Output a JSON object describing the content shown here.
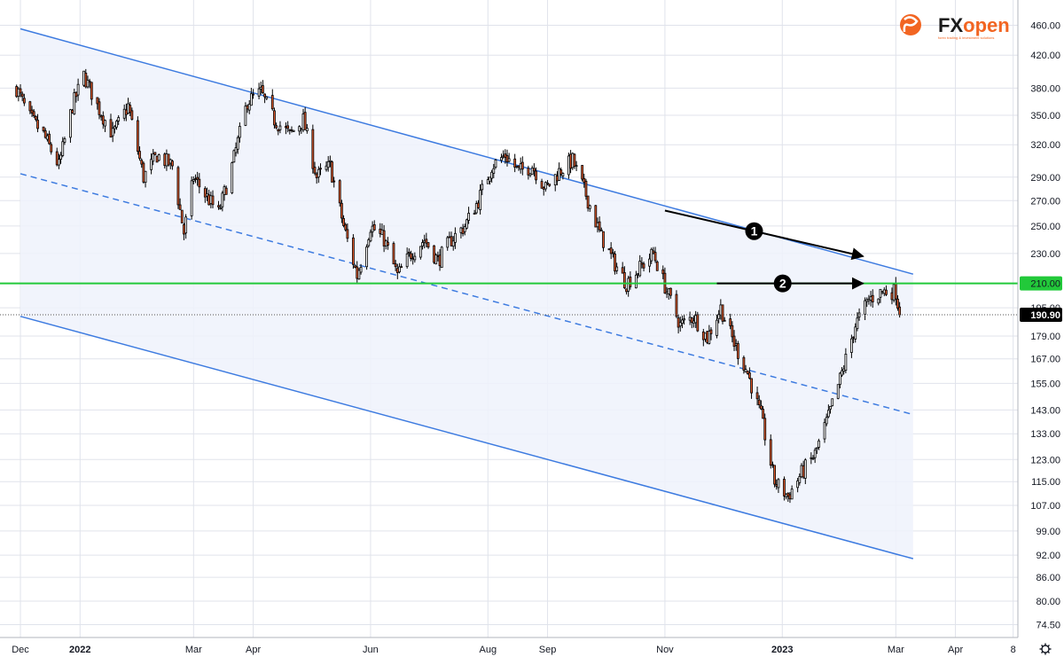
{
  "chart_data": {
    "type": "candlestick",
    "price_axis": {
      "scale": "log",
      "ticks": [
        "460.00",
        "420.00",
        "380.00",
        "350.00",
        "320.00",
        "290.00",
        "270.00",
        "250.00",
        "230.00",
        "210.00",
        "195.00",
        "179.00",
        "167.00",
        "155.00",
        "143.00",
        "133.00",
        "123.00",
        "115.00",
        "107.00",
        "99.00",
        "92.00",
        "86.00",
        "80.00",
        "74.50"
      ],
      "range": [
        73,
        490
      ]
    },
    "time_axis": {
      "ticks": [
        {
          "label": "Dec",
          "date": "2021-12-01",
          "bold": false
        },
        {
          "label": "2022",
          "date": "2022-01-01",
          "bold": true
        },
        {
          "label": "Mar",
          "date": "2022-03-01",
          "bold": false
        },
        {
          "label": "Apr",
          "date": "2022-04-01",
          "bold": false
        },
        {
          "label": "Jun",
          "date": "2022-06-01",
          "bold": false
        },
        {
          "label": "Aug",
          "date": "2022-08-01",
          "bold": false
        },
        {
          "label": "Sep",
          "date": "2022-09-01",
          "bold": false
        },
        {
          "label": "Nov",
          "date": "2022-11-01",
          "bold": false
        },
        {
          "label": "2023",
          "date": "2023-01-01",
          "bold": true
        },
        {
          "label": "Mar",
          "date": "2023-03-01",
          "bold": false
        },
        {
          "label": "Apr",
          "date": "2023-04-01",
          "bold": false
        },
        {
          "label": "8",
          "date": "2023-05-01",
          "bold": false
        }
      ]
    },
    "close_path": [
      [
        "2021-11-29",
        380
      ],
      [
        "2021-12-05",
        350
      ],
      [
        "2021-12-13",
        330
      ],
      [
        "2021-12-21",
        300
      ],
      [
        "2021-12-28",
        360
      ],
      [
        "2022-01-03",
        395
      ],
      [
        "2022-01-10",
        360
      ],
      [
        "2022-01-18",
        330
      ],
      [
        "2022-01-26",
        360
      ],
      [
        "2022-02-03",
        290
      ],
      [
        "2022-02-10",
        310
      ],
      [
        "2022-02-18",
        300
      ],
      [
        "2022-02-24",
        245
      ],
      [
        "2022-03-01",
        290
      ],
      [
        "2022-03-07",
        275
      ],
      [
        "2022-03-14",
        260
      ],
      [
        "2022-03-21",
        300
      ],
      [
        "2022-03-29",
        365
      ],
      [
        "2022-04-05",
        375
      ],
      [
        "2022-04-12",
        345
      ],
      [
        "2022-04-20",
        330
      ],
      [
        "2022-04-27",
        345
      ],
      [
        "2022-05-04",
        290
      ],
      [
        "2022-05-11",
        300
      ],
      [
        "2022-05-18",
        250
      ],
      [
        "2022-05-25",
        215
      ],
      [
        "2022-06-01",
        250
      ],
      [
        "2022-06-08",
        240
      ],
      [
        "2022-06-15",
        215
      ],
      [
        "2022-06-22",
        230
      ],
      [
        "2022-06-29",
        240
      ],
      [
        "2022-07-06",
        225
      ],
      [
        "2022-07-13",
        240
      ],
      [
        "2022-07-20",
        250
      ],
      [
        "2022-07-27",
        270
      ],
      [
        "2022-08-03",
        300
      ],
      [
        "2022-08-10",
        310
      ],
      [
        "2022-08-17",
        295
      ],
      [
        "2022-08-24",
        300
      ],
      [
        "2022-08-31",
        280
      ],
      [
        "2022-09-07",
        295
      ],
      [
        "2022-09-14",
        305
      ],
      [
        "2022-09-21",
        275
      ],
      [
        "2022-09-28",
        245
      ],
      [
        "2022-10-05",
        225
      ],
      [
        "2022-10-12",
        210
      ],
      [
        "2022-10-19",
        220
      ],
      [
        "2022-10-26",
        230
      ],
      [
        "2022-11-02",
        205
      ],
      [
        "2022-11-09",
        185
      ],
      [
        "2022-11-16",
        190
      ],
      [
        "2022-11-23",
        178
      ],
      [
        "2022-11-30",
        195
      ],
      [
        "2022-12-07",
        175
      ],
      [
        "2022-12-14",
        160
      ],
      [
        "2022-12-21",
        140
      ],
      [
        "2022-12-28",
        115
      ],
      [
        "2023-01-04",
        110
      ],
      [
        "2023-01-11",
        118
      ],
      [
        "2023-01-18",
        125
      ],
      [
        "2023-01-25",
        140
      ],
      [
        "2023-02-01",
        160
      ],
      [
        "2023-02-08",
        185
      ],
      [
        "2023-02-15",
        200
      ],
      [
        "2023-02-22",
        205
      ],
      [
        "2023-03-01",
        205
      ],
      [
        "2023-03-03",
        190.9
      ]
    ],
    "current_price": "190.90",
    "horizontal_level": {
      "price": 210,
      "label": "210.00"
    },
    "channel": {
      "upper": [
        [
          "2021-12-01",
          455
        ],
        [
          "2023-03-10",
          216
        ]
      ],
      "mid": [
        [
          "2021-12-01",
          293
        ],
        [
          "2023-03-10",
          141
        ]
      ],
      "lower": [
        [
          "2021-12-01",
          190
        ],
        [
          "2023-03-10",
          91
        ]
      ]
    },
    "annotations": [
      {
        "label": "1",
        "from": [
          "2022-11-01",
          262
        ],
        "to": [
          "2023-02-12",
          228
        ]
      },
      {
        "label": "2",
        "from": [
          "2022-11-28",
          210
        ],
        "to": [
          "2023-02-12",
          210
        ]
      }
    ],
    "logo": {
      "text": "FXopen",
      "subtitle": "forex trading & investment solutions"
    },
    "colors": {
      "up": "#ffffff",
      "down": "#e25a2c",
      "wick": "#000000",
      "channel": "#3d7be0",
      "channel_fill": "#eef2fb",
      "level": "#22c93a",
      "logo": "#f26522",
      "grid": "#e0e3eb"
    }
  }
}
